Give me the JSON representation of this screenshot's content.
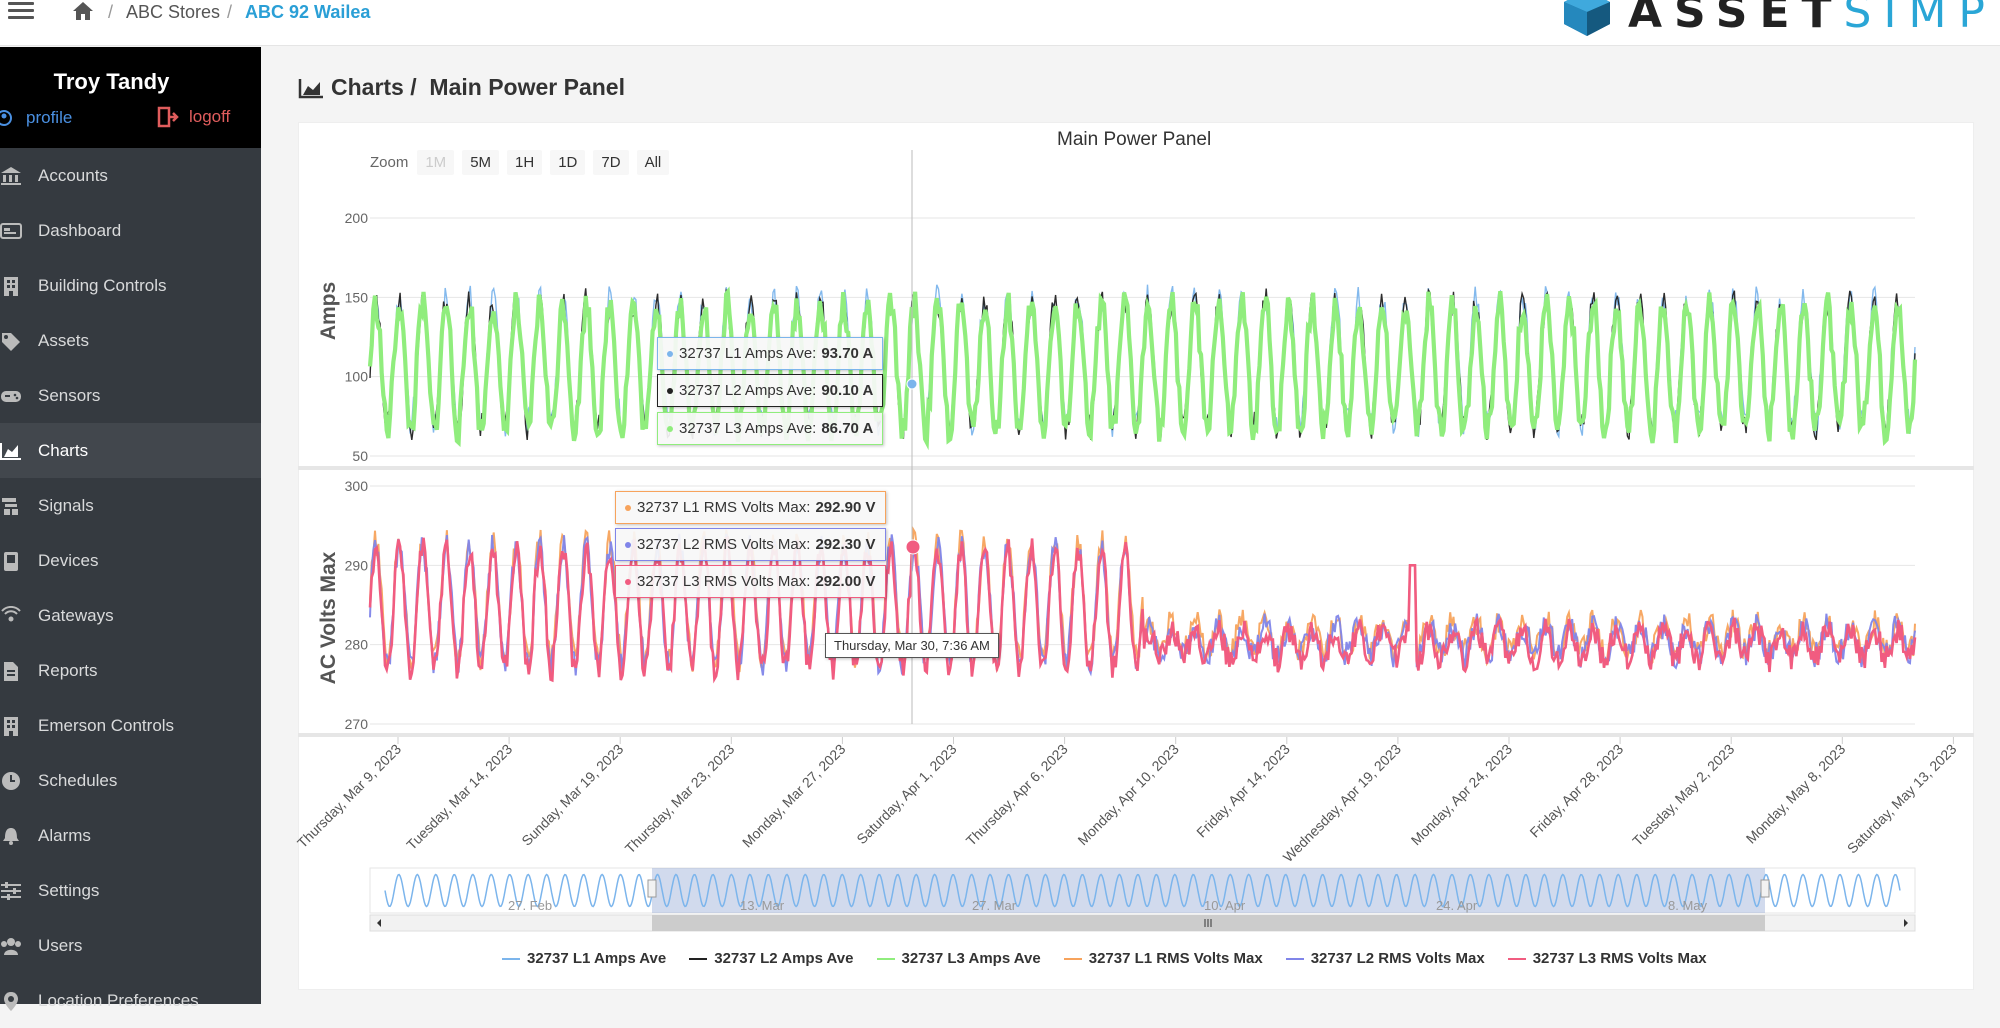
{
  "breadcrumb": {
    "items": [
      "ABC Stores",
      "ABC 92 Wailea"
    ],
    "separator": "/"
  },
  "logo": {
    "text_dark": "ASSET",
    "text_light": "SIMPLE"
  },
  "user": {
    "name": "Troy Tandy",
    "profile_label": "profile",
    "logoff_label": "logoff"
  },
  "sidebar": {
    "items": [
      {
        "label": "Accounts",
        "icon": "bank-icon"
      },
      {
        "label": "Dashboard",
        "icon": "dashboard-icon"
      },
      {
        "label": "Building Controls",
        "icon": "building-icon"
      },
      {
        "label": "Assets",
        "icon": "tag-icon"
      },
      {
        "label": "Sensors",
        "icon": "gamepad-icon"
      },
      {
        "label": "Charts",
        "icon": "area-chart-icon",
        "active": true
      },
      {
        "label": "Signals",
        "icon": "signal-icon"
      },
      {
        "label": "Devices",
        "icon": "device-icon"
      },
      {
        "label": "Gateways",
        "icon": "gateway-icon"
      },
      {
        "label": "Reports",
        "icon": "report-icon"
      },
      {
        "label": "Emerson Controls",
        "icon": "building-icon"
      },
      {
        "label": "Schedules",
        "icon": "clock-icon"
      },
      {
        "label": "Alarms",
        "icon": "bell-icon"
      },
      {
        "label": "Settings",
        "icon": "sliders-icon"
      },
      {
        "label": "Users",
        "icon": "users-icon"
      },
      {
        "label": "Location Preferences",
        "icon": "location-icon"
      }
    ]
  },
  "page": {
    "title_prefix": "Charts /",
    "title": "Main Power Panel"
  },
  "zoom": {
    "label": "Zoom",
    "buttons": [
      "1M",
      "5M",
      "1H",
      "1D",
      "7D",
      "All"
    ],
    "disabled": "1M"
  },
  "chart_data": {
    "type": "line",
    "title": "Main Power Panel",
    "x_ticks": [
      "Thursday, Mar 9, 2023",
      "Tuesday, Mar 14, 2023",
      "Sunday, Mar 19, 2023",
      "Thursday, Mar 23, 2023",
      "Monday, Mar 27, 2023",
      "Saturday, Apr 1, 2023",
      "Thursday, Apr 6, 2023",
      "Monday, Apr 10, 2023",
      "Friday, Apr 14, 2023",
      "Wednesday, Apr 19, 2023",
      "Monday, Apr 24, 2023",
      "Friday, Apr 28, 2023",
      "Tuesday, May 2, 2023",
      "Monday, May 8, 2023",
      "Saturday, May 13, 2023"
    ],
    "panes": [
      {
        "ylabel": "Amps",
        "ylim": [
          50,
          200
        ],
        "yticks": [
          50,
          100,
          150,
          200
        ],
        "series": [
          {
            "name": "32737 L1 Amps Ave",
            "color": "#7cb5ec",
            "unit": "A"
          },
          {
            "name": "32737 L2 Amps Ave",
            "color": "#222222",
            "unit": "A"
          },
          {
            "name": "32737 L3 Amps Ave",
            "color": "#90ed7d",
            "unit": "A"
          }
        ],
        "daily_range": [
          70,
          150
        ]
      },
      {
        "ylabel": "AC Volts Max",
        "ylim": [
          270,
          300
        ],
        "yticks": [
          270,
          280,
          290,
          300
        ],
        "series": [
          {
            "name": "32737 L1 RMS Volts Max",
            "color": "#f7a35c",
            "unit": "V"
          },
          {
            "name": "32737 L2 RMS Volts Max",
            "color": "#8085e9",
            "unit": "V"
          },
          {
            "name": "32737 L3 RMS Volts Max",
            "color": "#f15c80",
            "unit": "V"
          }
        ],
        "daily_range": [
          278,
          293
        ]
      }
    ],
    "tooltip": {
      "date": "Thursday, Mar 30, 7:36 AM",
      "amps": [
        {
          "name": "32737 L1 Amps Ave",
          "value": "93.70 A",
          "color": "#7cb5ec"
        },
        {
          "name": "32737 L2 Amps Ave",
          "value": "90.10 A",
          "color": "#222222"
        },
        {
          "name": "32737 L3 Amps Ave",
          "value": "86.70 A",
          "color": "#90ed7d"
        }
      ],
      "volts": [
        {
          "name": "32737 L1 RMS Volts Max",
          "value": "292.90 V",
          "color": "#f7a35c"
        },
        {
          "name": "32737 L2 RMS Volts Max",
          "value": "292.30 V",
          "color": "#8085e9"
        },
        {
          "name": "32737 L3 RMS Volts Max",
          "value": "292.00 V",
          "color": "#f15c80"
        }
      ]
    },
    "navigator_ticks": [
      "27. Feb",
      "13. Mar",
      "27. Mar",
      "10. Apr",
      "24. Apr",
      "8. May"
    ],
    "legend": [
      "32737 L1 Amps Ave",
      "32737 L2 Amps Ave",
      "32737 L3 Amps Ave",
      "32737 L1 RMS Volts Max",
      "32737 L2 RMS Volts Max",
      "32737 L3 RMS Volts Max"
    ],
    "legend_colors": [
      "#7cb5ec",
      "#222222",
      "#90ed7d",
      "#f7a35c",
      "#8085e9",
      "#f15c80"
    ]
  }
}
